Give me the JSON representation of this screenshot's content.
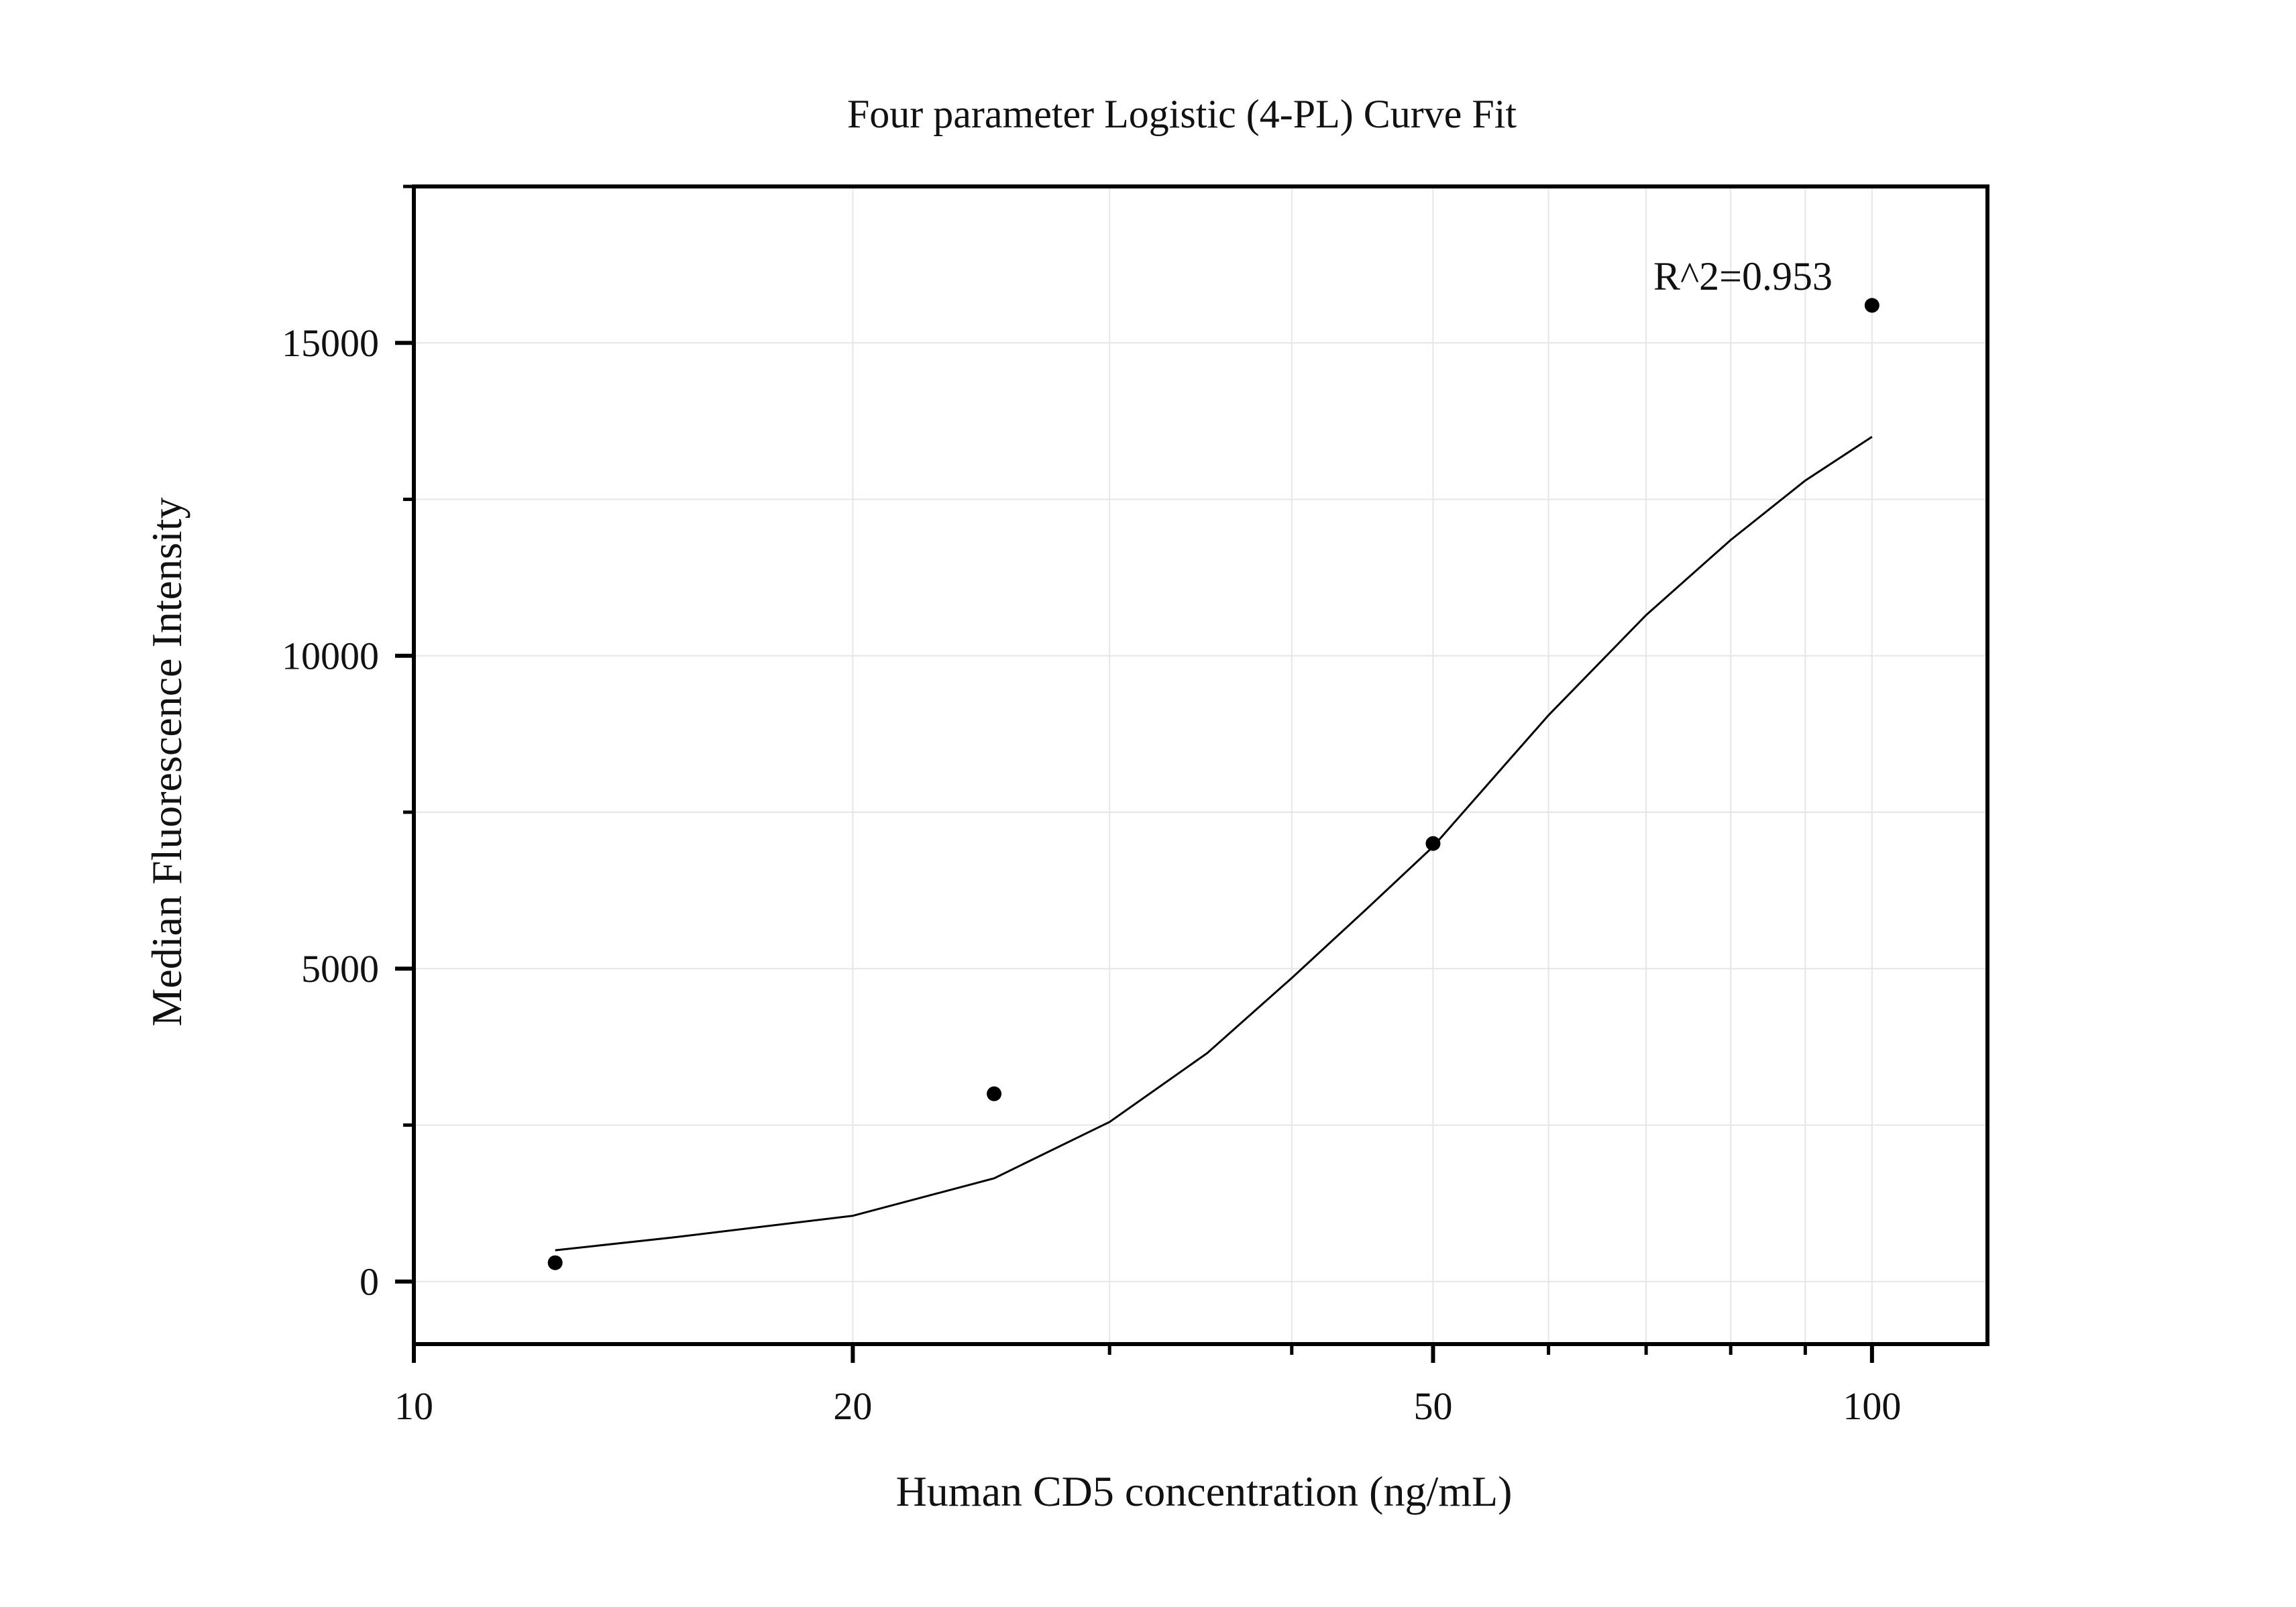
{
  "chart_data": {
    "type": "scatter",
    "title": "Four parameter Logistic (4-PL) Curve Fit",
    "xlabel": "Human CD5 concentration (ng/mL)",
    "ylabel": "Median Fluorescence Intensity",
    "x_scale": "log",
    "xlim": [
      10,
      120
    ],
    "ylim": [
      -1000,
      17500
    ],
    "x_ticks": [
      10,
      20,
      50,
      100
    ],
    "x_tick_labels": [
      "10",
      "20",
      "50",
      "100"
    ],
    "y_ticks": [
      0,
      5000,
      10000,
      15000
    ],
    "y_tick_labels": [
      "0",
      "5000",
      "10000",
      "15000"
    ],
    "grid": true,
    "annotation": "R^2=0.953",
    "series": [
      {
        "kind": "points",
        "x": [
          12.5,
          25,
          50,
          100
        ],
        "y": [
          300,
          3000,
          7000,
          15600
        ]
      },
      {
        "kind": "fitted-curve",
        "x": [
          12.5,
          15,
          20,
          25,
          30,
          35,
          40,
          45,
          50,
          55,
          60,
          70,
          80,
          90,
          100
        ],
        "y": [
          500,
          700,
          1050,
          1650,
          2550,
          3650,
          4850,
          5950,
          6950,
          8050,
          9050,
          10650,
          11850,
          12800,
          13500
        ]
      }
    ],
    "colors": {
      "points": "#000000",
      "curve": "#000000",
      "grid": "#e6e6e6",
      "frame": "#000000"
    }
  }
}
